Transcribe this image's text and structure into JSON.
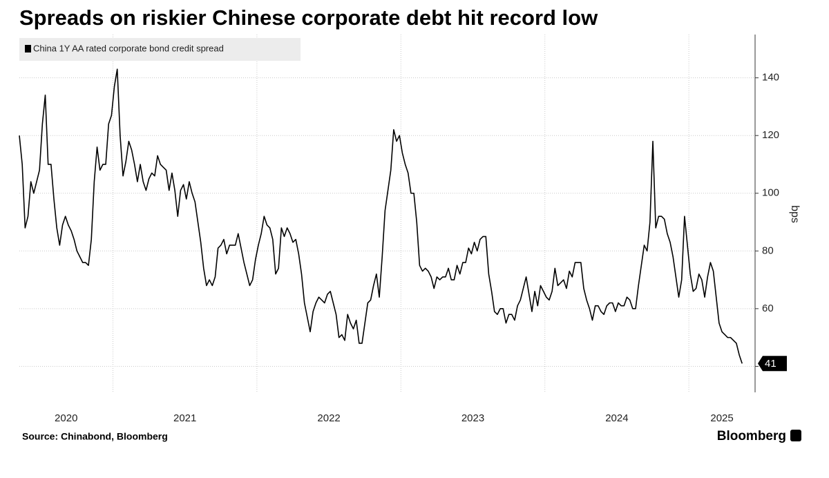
{
  "chart_data": {
    "type": "line",
    "title": "Spreads on riskier Chinese corporate debt hit record low",
    "y_label": "bps",
    "source": "Source: Chinabond, Bloomberg",
    "brand": "Bloomberg",
    "legend": "top-left",
    "grid": true,
    "xlim": [
      2020.35,
      2025.46
    ],
    "xticks": [
      2020,
      2021,
      2022,
      2023,
      2024,
      2025
    ],
    "ylim": [
      31,
      155
    ],
    "yticks": [
      40,
      60,
      80,
      100,
      120,
      140
    ],
    "x": [
      2020.35,
      2020.37,
      2020.39,
      2020.41,
      2020.43,
      2020.45,
      2020.47,
      2020.49,
      2020.51,
      2020.53,
      2020.55,
      2020.57,
      2020.59,
      2020.61,
      2020.63,
      2020.65,
      2020.67,
      2020.69,
      2020.71,
      2020.73,
      2020.75,
      2020.77,
      2020.79,
      2020.81,
      2020.83,
      2020.85,
      2020.87,
      2020.89,
      2020.91,
      2020.93,
      2020.95,
      2020.97,
      2020.99,
      2021.01,
      2021.03,
      2021.05,
      2021.07,
      2021.09,
      2021.11,
      2021.13,
      2021.15,
      2021.17,
      2021.19,
      2021.21,
      2021.23,
      2021.25,
      2021.27,
      2021.29,
      2021.31,
      2021.33,
      2021.35,
      2021.37,
      2021.39,
      2021.41,
      2021.43,
      2021.45,
      2021.47,
      2021.49,
      2021.51,
      2021.53,
      2021.55,
      2021.57,
      2021.59,
      2021.61,
      2021.63,
      2021.65,
      2021.67,
      2021.69,
      2021.71,
      2021.73,
      2021.75,
      2021.77,
      2021.79,
      2021.81,
      2021.83,
      2021.85,
      2021.87,
      2021.89,
      2021.91,
      2021.93,
      2021.95,
      2021.97,
      2021.99,
      2022.01,
      2022.03,
      2022.05,
      2022.07,
      2022.09,
      2022.11,
      2022.13,
      2022.15,
      2022.17,
      2022.19,
      2022.21,
      2022.23,
      2022.25,
      2022.27,
      2022.29,
      2022.31,
      2022.33,
      2022.35,
      2022.37,
      2022.39,
      2022.41,
      2022.43,
      2022.45,
      2022.47,
      2022.49,
      2022.51,
      2022.53,
      2022.55,
      2022.57,
      2022.59,
      2022.61,
      2022.63,
      2022.65,
      2022.67,
      2022.69,
      2022.71,
      2022.73,
      2022.75,
      2022.77,
      2022.79,
      2022.81,
      2022.83,
      2022.85,
      2022.87,
      2022.89,
      2022.91,
      2022.93,
      2022.95,
      2022.97,
      2022.99,
      2023.01,
      2023.03,
      2023.05,
      2023.07,
      2023.09,
      2023.11,
      2023.13,
      2023.15,
      2023.17,
      2023.19,
      2023.21,
      2023.23,
      2023.25,
      2023.27,
      2023.29,
      2023.31,
      2023.33,
      2023.35,
      2023.37,
      2023.39,
      2023.41,
      2023.43,
      2023.45,
      2023.47,
      2023.49,
      2023.51,
      2023.53,
      2023.55,
      2023.57,
      2023.59,
      2023.61,
      2023.63,
      2023.65,
      2023.67,
      2023.69,
      2023.71,
      2023.73,
      2023.75,
      2023.77,
      2023.79,
      2023.81,
      2023.83,
      2023.85,
      2023.87,
      2023.89,
      2023.91,
      2023.93,
      2023.95,
      2023.97,
      2023.99,
      2024.01,
      2024.03,
      2024.05,
      2024.07,
      2024.09,
      2024.11,
      2024.13,
      2024.15,
      2024.17,
      2024.19,
      2024.21,
      2024.23,
      2024.25,
      2024.27,
      2024.29,
      2024.31,
      2024.33,
      2024.35,
      2024.37,
      2024.39,
      2024.41,
      2024.43,
      2024.45,
      2024.47,
      2024.49,
      2024.51,
      2024.53,
      2024.55,
      2024.57,
      2024.59,
      2024.61,
      2024.63,
      2024.65,
      2024.67,
      2024.69,
      2024.71,
      2024.73,
      2024.75,
      2024.77,
      2024.79,
      2024.81,
      2024.83,
      2024.85,
      2024.87,
      2024.89,
      2024.91,
      2024.93,
      2024.95,
      2024.97,
      2024.99,
      2025.01,
      2025.03,
      2025.05,
      2025.07,
      2025.09,
      2025.11,
      2025.13,
      2025.15,
      2025.17,
      2025.19,
      2025.21,
      2025.23,
      2025.25,
      2025.27,
      2025.29,
      2025.31,
      2025.33,
      2025.35,
      2025.37
    ],
    "series": [
      {
        "name": "China 1Y AA rated corporate bond credit spread",
        "color": "#000000",
        "values": [
          120,
          110,
          88,
          92,
          104,
          100,
          104,
          108,
          124,
          134,
          110,
          110,
          98,
          88,
          82,
          89,
          92,
          89,
          87,
          84,
          80,
          78,
          76,
          76,
          75,
          84,
          104,
          116,
          108,
          110,
          110,
          124,
          127,
          137,
          143,
          120,
          106,
          111,
          118,
          115,
          110,
          104,
          110,
          104,
          101,
          105,
          107,
          106,
          113,
          110,
          109,
          108,
          101,
          107,
          101,
          92,
          101,
          103,
          98,
          104,
          100,
          97,
          90,
          83,
          74,
          68,
          70,
          68,
          71,
          81,
          82,
          84,
          79,
          82,
          82,
          82,
          86,
          81,
          76,
          72,
          68,
          70,
          77,
          82,
          86,
          92,
          89,
          88,
          84,
          72,
          74,
          88,
          85,
          88,
          86,
          83,
          84,
          79,
          72,
          62,
          57,
          52,
          59,
          62,
          64,
          63,
          62,
          65,
          66,
          62,
          58,
          50,
          51,
          49,
          58,
          55,
          53,
          56,
          48,
          48,
          55,
          62,
          63,
          68,
          72,
          64,
          78,
          94,
          101,
          108,
          122,
          118,
          120,
          114,
          110,
          107,
          100,
          100,
          90,
          75,
          73,
          74,
          73,
          71,
          67,
          71,
          70,
          71,
          71,
          74,
          70,
          70,
          75,
          72,
          76,
          76,
          81,
          79,
          83,
          80,
          84,
          85,
          85,
          72,
          66,
          59,
          58,
          60,
          60,
          55,
          58,
          58,
          56,
          61,
          63,
          67,
          71,
          65,
          59,
          66,
          61,
          68,
          66,
          64,
          63,
          66,
          74,
          68,
          69,
          70,
          67,
          73,
          71,
          76,
          76,
          76,
          67,
          63,
          60,
          56,
          61,
          61,
          59,
          58,
          61,
          62,
          62,
          59,
          62,
          61,
          61,
          64,
          63,
          60,
          60,
          68,
          75,
          82,
          80,
          90,
          118,
          88,
          92,
          92,
          91,
          86,
          83,
          78,
          71,
          64,
          70,
          92,
          82,
          72,
          66,
          67,
          72,
          70,
          64,
          71,
          76,
          73,
          64,
          55,
          52,
          51,
          50,
          50,
          49,
          48,
          44,
          41
        ]
      }
    ]
  }
}
